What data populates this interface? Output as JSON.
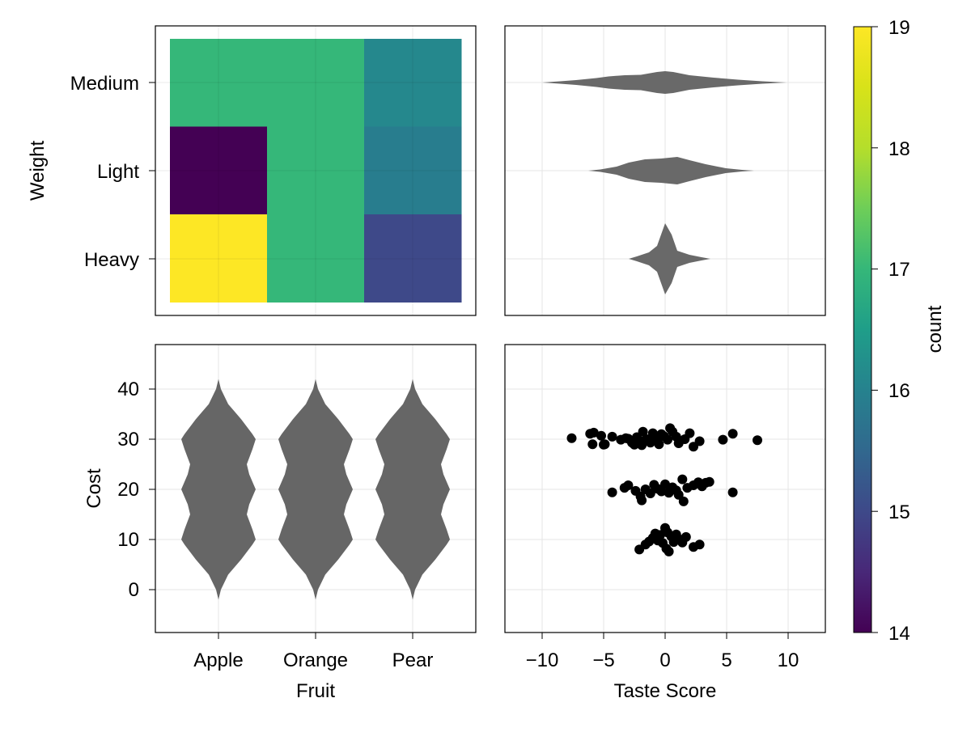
{
  "chart_data": [
    {
      "panel": "top-left",
      "type": "heatmap",
      "x_categories": [
        "Apple",
        "Orange",
        "Pear"
      ],
      "y_categories": [
        "Heavy",
        "Light",
        "Medium"
      ],
      "ylabel": "Weight",
      "values": [
        [
          19,
          17,
          15
        ],
        [
          14,
          17,
          15.9
        ],
        [
          17,
          17,
          16.1
        ]
      ],
      "colormap": "viridis",
      "grid": true
    },
    {
      "panel": "top-right",
      "type": "violin",
      "orientation": "horizontal",
      "categories": [
        "Heavy",
        "Light",
        "Medium"
      ],
      "xlim": [
        -13,
        13
      ],
      "x_ticks": [
        -10,
        -5,
        0,
        5,
        10
      ],
      "color": "#666666",
      "grid": true
    },
    {
      "panel": "bottom-left",
      "type": "violin",
      "orientation": "vertical",
      "categories": [
        "Apple",
        "Orange",
        "Pear"
      ],
      "xlabel": "Fruit",
      "ylabel": "Cost",
      "ylim": [
        -9,
        48.5
      ],
      "y_ticks": [
        0,
        10,
        20,
        30,
        40
      ],
      "color": "#666666",
      "grid": true
    },
    {
      "panel": "bottom-right",
      "type": "scatter",
      "xlabel": "Taste Score",
      "xlim": [
        -13,
        13
      ],
      "ylim": [
        -9,
        48.5
      ],
      "x_ticks": [
        -10,
        -5,
        0,
        5,
        10
      ],
      "grid": true,
      "points": [
        [
          -7.6,
          30.2
        ],
        [
          -6.1,
          31.1
        ],
        [
          -5.8,
          31.3
        ],
        [
          -5.9,
          29.0
        ],
        [
          -5.2,
          30.7
        ],
        [
          -4.9,
          29.0
        ],
        [
          -5.0,
          28.9
        ],
        [
          -4.3,
          30.5
        ],
        [
          -3.6,
          29.9
        ],
        [
          -3.2,
          30.2
        ],
        [
          -3.0,
          30.1
        ],
        [
          -2.7,
          29.3
        ],
        [
          -2.5,
          28.9
        ],
        [
          -2.3,
          30.4
        ],
        [
          -2.0,
          29.6
        ],
        [
          -1.9,
          28.8
        ],
        [
          -1.8,
          31.5
        ],
        [
          -1.5,
          30.0
        ],
        [
          -1.2,
          29.3
        ],
        [
          -1.0,
          31.2
        ],
        [
          -0.9,
          29.8
        ],
        [
          -0.6,
          30.2
        ],
        [
          -0.5,
          29.0
        ],
        [
          -0.3,
          31.0
        ],
        [
          -0.1,
          30.6
        ],
        [
          0.2,
          29.9
        ],
        [
          0.4,
          32.2
        ],
        [
          0.6,
          31.5
        ],
        [
          0.9,
          30.5
        ],
        [
          1.1,
          29.2
        ],
        [
          1.6,
          30.0
        ],
        [
          2.0,
          31.2
        ],
        [
          2.3,
          28.5
        ],
        [
          2.8,
          29.6
        ],
        [
          4.7,
          29.9
        ],
        [
          5.5,
          31.1
        ],
        [
          7.5,
          29.8
        ],
        [
          -4.3,
          19.4
        ],
        [
          -3.3,
          20.3
        ],
        [
          -3.0,
          20.8
        ],
        [
          -2.4,
          19.7
        ],
        [
          -2.0,
          18.6
        ],
        [
          -1.9,
          17.8
        ],
        [
          -1.6,
          20.0
        ],
        [
          -1.2,
          19.2
        ],
        [
          -0.9,
          20.9
        ],
        [
          -0.6,
          20.1
        ],
        [
          -0.3,
          19.6
        ],
        [
          0.0,
          21.0
        ],
        [
          0.3,
          19.3
        ],
        [
          0.6,
          20.4
        ],
        [
          0.9,
          19.8
        ],
        [
          1.1,
          18.9
        ],
        [
          1.4,
          22.0
        ],
        [
          1.5,
          17.6
        ],
        [
          1.8,
          20.3
        ],
        [
          2.3,
          20.8
        ],
        [
          2.7,
          21.4
        ],
        [
          3.0,
          20.6
        ],
        [
          3.3,
          21.3
        ],
        [
          3.6,
          21.5
        ],
        [
          5.5,
          19.4
        ],
        [
          -2.1,
          8.0
        ],
        [
          -1.6,
          9.0
        ],
        [
          -1.3,
          9.6
        ],
        [
          -1.0,
          10.3
        ],
        [
          -0.8,
          11.2
        ],
        [
          -0.6,
          9.8
        ],
        [
          -0.4,
          10.9
        ],
        [
          -0.2,
          9.3
        ],
        [
          0.0,
          12.3
        ],
        [
          0.1,
          8.2
        ],
        [
          0.2,
          11.4
        ],
        [
          0.3,
          7.6
        ],
        [
          0.5,
          10.6
        ],
        [
          0.7,
          9.5
        ],
        [
          0.9,
          11.0
        ],
        [
          1.1,
          10.1
        ],
        [
          1.4,
          9.4
        ],
        [
          1.7,
          10.5
        ],
        [
          2.3,
          8.5
        ],
        [
          2.8,
          9.0
        ]
      ]
    },
    {
      "panel": "colorbar",
      "type": "colorbar",
      "label": "count",
      "range": [
        14,
        19
      ],
      "ticks": [
        14,
        15,
        16,
        17,
        18,
        19
      ],
      "colormap": "viridis"
    }
  ],
  "ticks": {
    "tl_y": [
      "Heavy",
      "Light",
      "Medium"
    ],
    "bl_x": [
      "Apple",
      "Orange",
      "Pear"
    ],
    "bl_y": [
      "0",
      "10",
      "20",
      "30",
      "40"
    ],
    "br_x": [
      "−10",
      "−5",
      "0",
      "5",
      "10"
    ],
    "cb": [
      "14",
      "15",
      "16",
      "17",
      "18",
      "19"
    ]
  },
  "labels": {
    "weight": "Weight",
    "cost": "Cost",
    "fruit": "Fruit",
    "taste": "Taste Score",
    "count": "count"
  },
  "colors": {
    "violin": "#666666",
    "grid": "#e6e6e6",
    "frame": "#000000",
    "point": "#000000"
  }
}
